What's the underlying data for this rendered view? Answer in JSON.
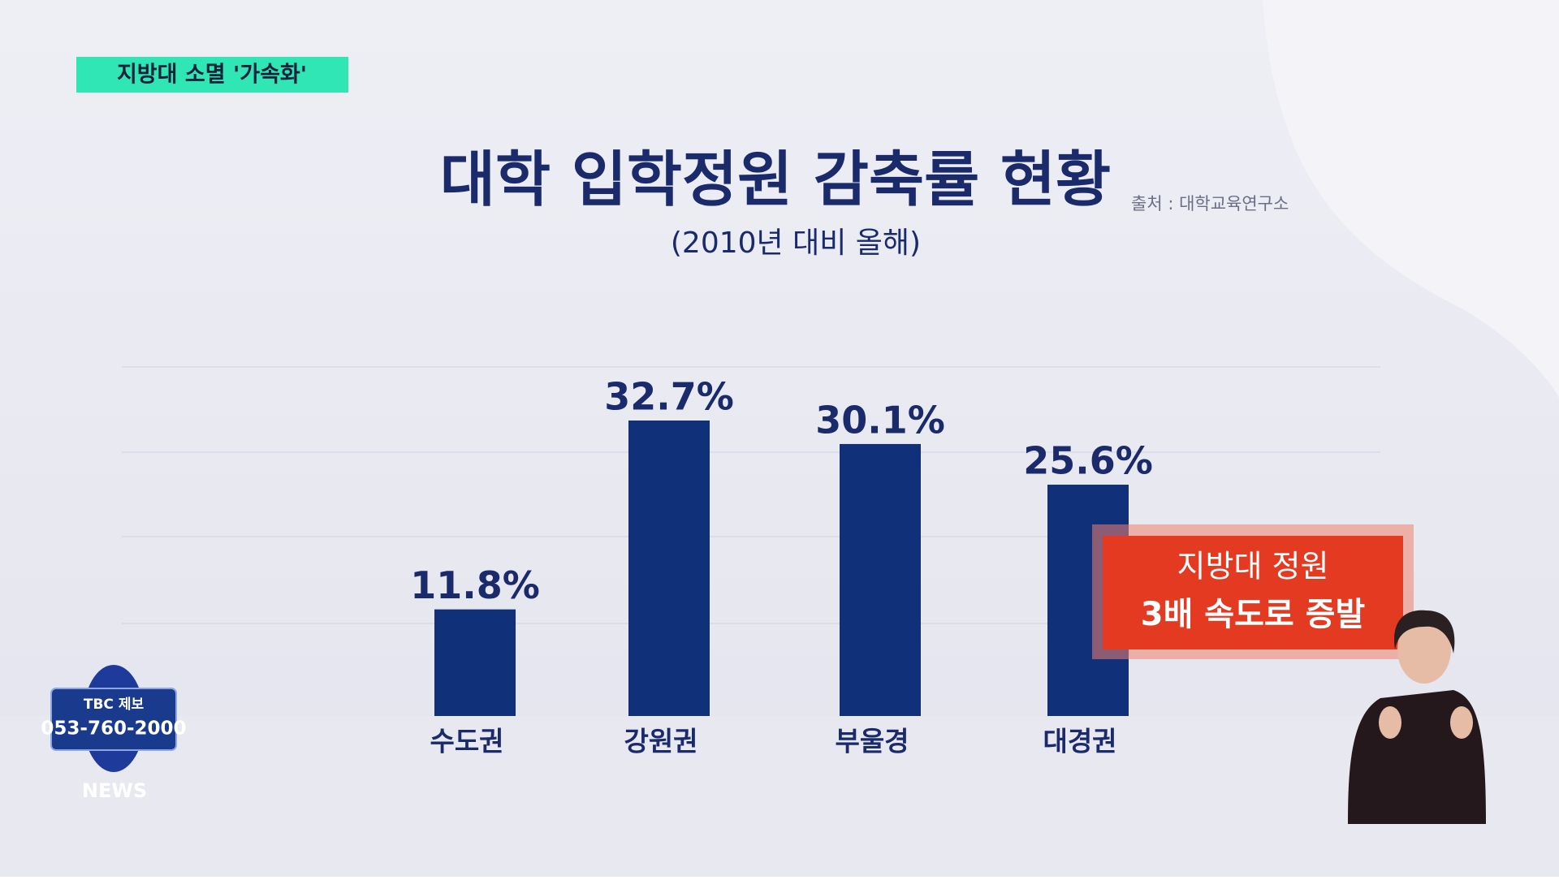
{
  "headline": "지방대 소멸 '가속화'",
  "chart_data": {
    "type": "bar",
    "title": "대학 입학정원 감축률 현황",
    "subtitle": "(2010년 대비 올해)",
    "source": "출처 : 대학교육연구소",
    "categories": [
      "수도권",
      "강원권",
      "부울경",
      "대경권"
    ],
    "values": [
      11.8,
      32.7,
      30.1,
      25.6
    ],
    "value_labels": [
      "11.8%",
      "32.7%",
      "30.1%",
      "25.6%"
    ],
    "color": "#11307a"
  },
  "callout": {
    "lines": [
      "지방대 정원",
      "3배 속도로 증발"
    ]
  },
  "tip_line": {
    "label": "TBC 제보",
    "phone": "053-760-2000",
    "brand": "NEWS"
  }
}
